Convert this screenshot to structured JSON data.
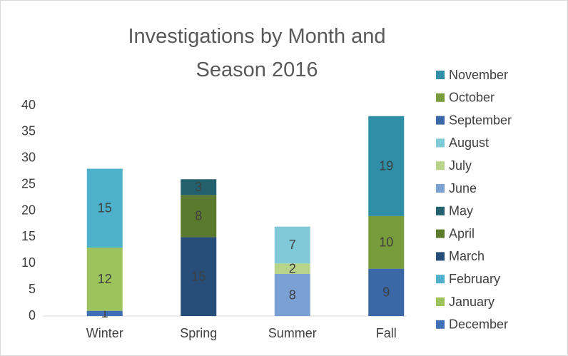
{
  "chart_data": {
    "type": "stacked_bar",
    "title": "Investigations by Month and Season 2016",
    "categories": [
      "Winter",
      "Spring",
      "Summer",
      "Fall"
    ],
    "series": [
      {
        "name": "December",
        "color": "#3f6fb5",
        "values": [
          1,
          null,
          null,
          null
        ]
      },
      {
        "name": "January",
        "color": "#9dc35c",
        "values": [
          12,
          null,
          null,
          null
        ]
      },
      {
        "name": "February",
        "color": "#4eb1cc",
        "values": [
          15,
          null,
          null,
          null
        ]
      },
      {
        "name": "March",
        "color": "#264e78",
        "values": [
          null,
          15,
          null,
          null
        ]
      },
      {
        "name": "April",
        "color": "#5c7a2e",
        "values": [
          null,
          8,
          null,
          null
        ]
      },
      {
        "name": "May",
        "color": "#23616f",
        "values": [
          null,
          3,
          null,
          null
        ]
      },
      {
        "name": "June",
        "color": "#7ba0d4",
        "values": [
          null,
          null,
          8,
          null
        ]
      },
      {
        "name": "July",
        "color": "#b7d48a",
        "values": [
          null,
          null,
          2,
          null
        ]
      },
      {
        "name": "August",
        "color": "#80c9d8",
        "values": [
          null,
          null,
          7,
          null
        ]
      },
      {
        "name": "September",
        "color": "#3a68a6",
        "values": [
          null,
          null,
          null,
          9
        ]
      },
      {
        "name": "October",
        "color": "#789b3c",
        "values": [
          null,
          null,
          null,
          10
        ]
      },
      {
        "name": "November",
        "color": "#2f8fa6",
        "values": [
          null,
          null,
          null,
          19
        ]
      }
    ],
    "ylim": [
      0,
      40
    ],
    "yticks": [
      0,
      5,
      10,
      15,
      20,
      25,
      30,
      35,
      40
    ],
    "grid": false,
    "legend": "right"
  }
}
